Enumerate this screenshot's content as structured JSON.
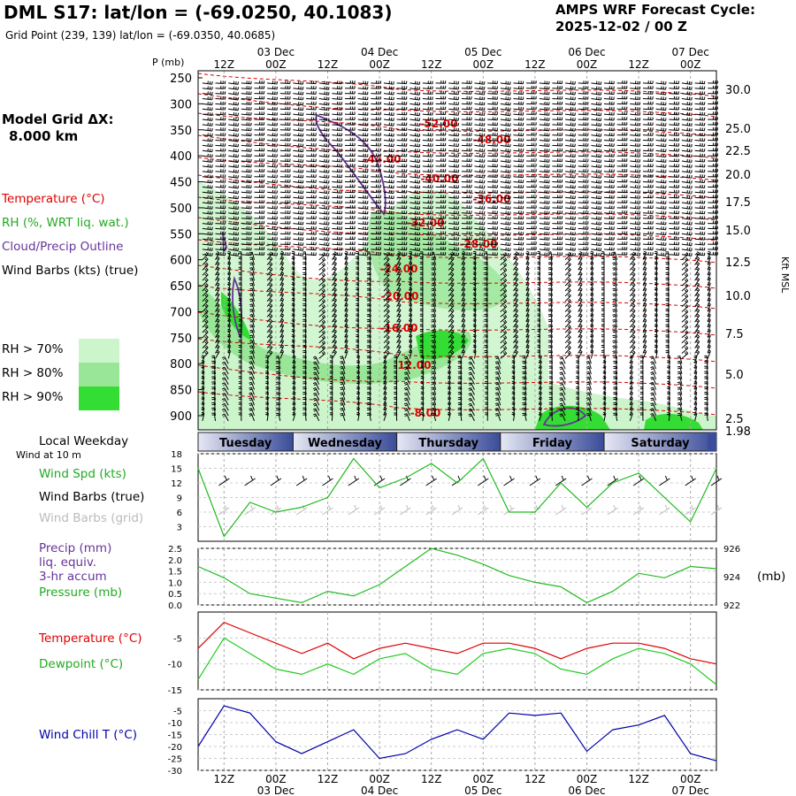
{
  "header": {
    "title": "DML S17:  lat/lon = (-69.0250, 40.1083)",
    "grid_point": "Grid Point (239, 139) lat/lon = (-69.0350, 40.0685)",
    "cycle_line1": "AMPS WRF Forecast Cycle:",
    "cycle_line2": "2025-12-02 / 00  Z",
    "model_line1": "Model Grid ΔX:",
    "model_line2": "8.000 km"
  },
  "time_axis": {
    "hour_labels": [
      "12Z",
      "00Z",
      "12Z",
      "00Z",
      "12Z",
      "00Z",
      "12Z",
      "00Z",
      "12Z",
      "00Z"
    ],
    "date_labels": [
      "03 Dec",
      "04 Dec",
      "05 Dec",
      "06 Dec",
      "07 Dec"
    ],
    "weekdays": [
      "Tuesday",
      "Wednesday",
      "Thursday",
      "Friday",
      "Saturday"
    ]
  },
  "legend": {
    "temperature": "Temperature (°C)",
    "rh": "RH (%, WRT liq. wat.)",
    "cloud": "Cloud/Precip Outline",
    "wind_barbs": "Wind Barbs (kts) (true)",
    "rh70": "RH > 70%",
    "rh80": "RH > 80%",
    "rh90": "RH > 90%",
    "p_axis_label": "P (mb)",
    "height_axis_label": "Kft MSL",
    "local_weekday": "Local Weekday",
    "wind_at_10m": "Wind at 10 m",
    "wind_spd": "Wind Spd (kts)",
    "wind_barbs_true": "Wind Barbs (true)",
    "wind_barbs_grid": "Wind Barbs (grid)",
    "precip_1": "Precip (mm)",
    "precip_2": "liq. equiv.",
    "precip_3": "3-hr accum",
    "pressure": "Pressure (mb)",
    "pressure_unit": "(mb)",
    "temp2": "Temperature (°C)",
    "dewpoint": "Dewpoint (°C)",
    "wind_chill": "Wind Chill T (°C)"
  },
  "colors": {
    "temperature": "#dd0000",
    "rh70": "#ccf5cc",
    "rh80": "#99e699",
    "rh90": "#33dd33",
    "cloud": "#663399",
    "wind_spd": "#22bb22",
    "dewpoint": "#22cc22",
    "wind_chill": "#0000aa",
    "grid_barbs": "#bbbbbb",
    "weekday_dark": "#3a4c9a",
    "weekday_light": "#e6e8f4"
  },
  "chart_data": [
    {
      "type": "heatmap",
      "title": "Time-height cross section",
      "ylabel": "P (mb)",
      "y_ticks": [
        250,
        300,
        350,
        400,
        450,
        500,
        550,
        600,
        650,
        700,
        750,
        800,
        850,
        900
      ],
      "height_ticks": [
        "30.0",
        "25.0",
        "22.5",
        "20.0",
        "17.5",
        "15.0",
        "12.5",
        "10.0",
        "7.5",
        "5.0",
        "2.5",
        "1.98"
      ],
      "temperature_contour_labels": [
        "-52.00",
        "-48.00",
        "-44.00",
        "-40.00",
        "-36.00",
        "-32.00",
        "-28.00",
        "-24.00",
        "-20.00",
        "-16.00",
        "-12.00",
        "-8.00"
      ]
    },
    {
      "type": "line",
      "name": "Wind Spd (kts)",
      "y_ticks": [
        18,
        15,
        12,
        9,
        6,
        3
      ],
      "ylim": [
        0,
        18
      ],
      "x_hours": [
        0,
        6,
        12,
        18,
        24,
        30,
        36,
        42,
        48,
        54,
        60,
        66,
        72,
        78,
        84,
        90,
        96,
        102,
        108,
        114,
        120
      ],
      "values": [
        15,
        1,
        8,
        6,
        7,
        9,
        17,
        11,
        13,
        16,
        12,
        17,
        6,
        6,
        12,
        7,
        12,
        14,
        9,
        4,
        15
      ]
    },
    {
      "type": "line",
      "name": "Precip / Pressure",
      "y_ticks": [
        "2.5",
        "2.0",
        "1.5",
        "1.0",
        "0.5",
        "0.0"
      ],
      "right_ticks": [
        "926",
        "924",
        "922"
      ],
      "ylim": [
        0,
        2.5
      ],
      "x_hours": [
        0,
        6,
        12,
        18,
        24,
        30,
        36,
        42,
        48,
        54,
        60,
        66,
        72,
        78,
        84,
        90,
        96,
        102,
        108,
        114,
        120
      ],
      "values": [
        1.7,
        1.2,
        0.5,
        0.3,
        0.1,
        0.6,
        0.4,
        0.9,
        1.7,
        2.5,
        2.2,
        1.8,
        1.3,
        1.0,
        0.8,
        0.1,
        0.6,
        1.4,
        1.2,
        1.7,
        1.6
      ]
    },
    {
      "type": "line",
      "y_ticks": [
        -5,
        -10,
        -15
      ],
      "ylim": [
        -15,
        0
      ],
      "x_hours": [
        0,
        6,
        12,
        18,
        24,
        30,
        36,
        42,
        48,
        54,
        60,
        66,
        72,
        78,
        84,
        90,
        96,
        102,
        108,
        114,
        120
      ],
      "series": [
        {
          "name": "Temperature (°C)",
          "values": [
            -7,
            -2,
            -4,
            -6,
            -8,
            -6,
            -9,
            -7,
            -6,
            -7,
            -8,
            -6,
            -6,
            -7,
            -9,
            -7,
            -6,
            -6,
            -7,
            -9,
            -10
          ]
        },
        {
          "name": "Dewpoint (°C)",
          "values": [
            -13,
            -5,
            -8,
            -11,
            -12,
            -10,
            -12,
            -9,
            -8,
            -11,
            -12,
            -8,
            -7,
            -8,
            -11,
            -12,
            -9,
            -7,
            -8,
            -10,
            -14
          ]
        }
      ]
    },
    {
      "type": "line",
      "name": "Wind Chill T (°C)",
      "y_ticks": [
        -5,
        -10,
        -15,
        -20,
        -25,
        -30
      ],
      "ylim": [
        -30,
        0
      ],
      "x_hours": [
        0,
        6,
        12,
        18,
        24,
        30,
        36,
        42,
        48,
        54,
        60,
        66,
        72,
        78,
        84,
        90,
        96,
        102,
        108,
        114,
        120
      ],
      "values": [
        -20,
        -3,
        -6,
        -18,
        -23,
        -18,
        -13,
        -25,
        -23,
        -17,
        -13,
        -17,
        -6,
        -7,
        -6,
        -22,
        -13,
        -11,
        -7,
        -23,
        -26
      ]
    }
  ]
}
